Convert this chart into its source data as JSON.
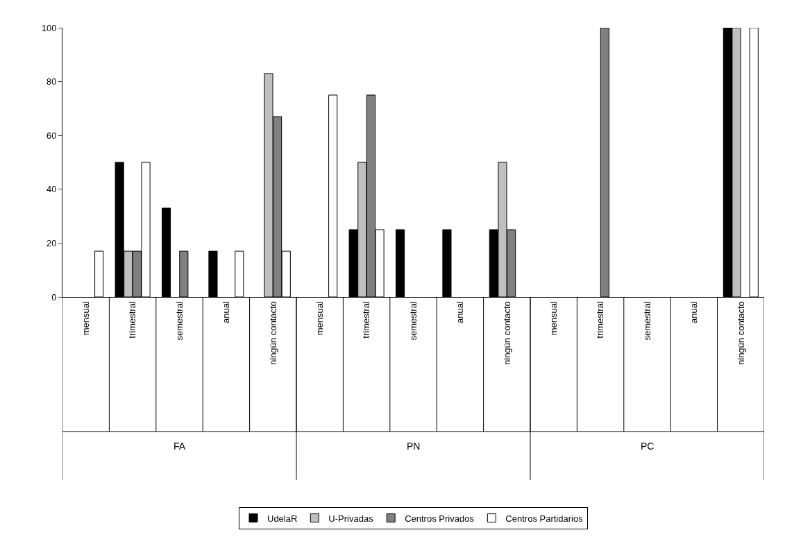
{
  "chart_data": {
    "type": "bar",
    "categories": [
      "mensual",
      "trimestral",
      "semestral",
      "anual",
      "ningún contacto",
      "mensual",
      "trimestral",
      "semestral",
      "anual",
      "ningún contacto",
      "mensual",
      "trimestral",
      "semestral",
      "anual",
      "ningún contacto"
    ],
    "series": [
      {
        "name": "UdelaR",
        "color": "#000000",
        "values": [
          null,
          50,
          33,
          17,
          null,
          null,
          25,
          25,
          25,
          25,
          null,
          null,
          null,
          null,
          100
        ]
      },
      {
        "name": "U-Privadas",
        "color": "#c0c0c0",
        "values": [
          null,
          17,
          null,
          null,
          83,
          null,
          50,
          null,
          null,
          50,
          null,
          null,
          null,
          null,
          100
        ]
      },
      {
        "name": "Centros Privados",
        "color": "#808080",
        "values": [
          null,
          17,
          17,
          null,
          67,
          null,
          75,
          null,
          null,
          25,
          null,
          100,
          null,
          null,
          null
        ]
      },
      {
        "name": "Centros Partidarios",
        "color": "#ffffff",
        "values": [
          17,
          50,
          null,
          17,
          17,
          75,
          25,
          null,
          null,
          null,
          null,
          null,
          null,
          null,
          100
        ]
      }
    ],
    "ylim": [
      0,
      100
    ],
    "yticks": [
      0,
      20,
      40,
      60,
      80,
      100
    ],
    "annotations": [
      "FA",
      "PN",
      "PC"
    ],
    "legend": "bottom",
    "grid": false
  }
}
